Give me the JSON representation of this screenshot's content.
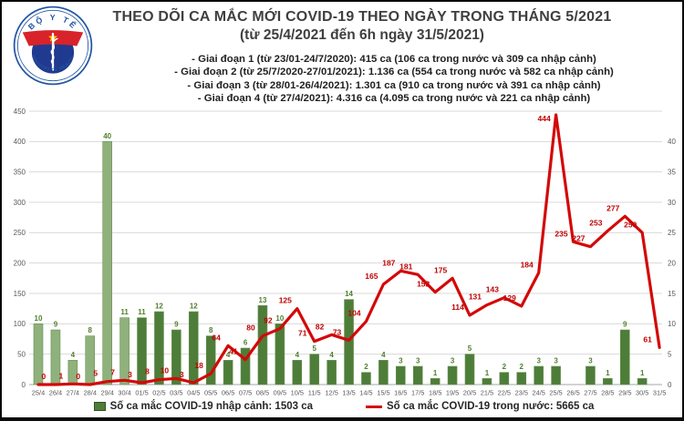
{
  "logo": {
    "top_text": "BỘ Y TẾ",
    "bottom_text": "MINISTRY OF HEALTH"
  },
  "title": {
    "line1": "THEO DÕI CA MẮC MỚI COVID-19 THEO NGÀY TRONG THÁNG 5/2021",
    "line2": "(từ 25/4/2021 đến 6h ngày 31/5/2021)"
  },
  "notes": [
    "- Giai đoạn 1 (từ 23/01-24/7/2020): 415 ca (106 ca trong nước và 309 ca nhập cảnh)",
    "- Giai đoạn 2 (từ 25/7/2020-27/01/2021): 1.136 ca (554 ca trong nước và 582 ca nhập cảnh)",
    "- Giai đoạn 3 (từ 28/01-26/4/2021): 1.301 ca (910 ca trong nước và 391 ca nhập cảnh)",
    "- Giai đoạn 4 (từ 27/4/2021): 4.316 ca (4.095 ca trong nước và 221 ca nhập cảnh)"
  ],
  "chart_data": {
    "type": "combo",
    "title": "THEO DÕI CA MẮC MỚI COVID-19 THEO NGÀY TRONG THÁNG 5/2021 (từ 25/4/2021 đến 6h ngày 31/5/2021)",
    "grid": true,
    "categories": [
      "25/4",
      "26/4",
      "27/4",
      "28/4",
      "29/4",
      "30/4",
      "01/5",
      "02/5",
      "03/5",
      "04/5",
      "05/5",
      "06/5",
      "07/5",
      "08/5",
      "09/5",
      "10/5",
      "11/5",
      "12/5",
      "13/5",
      "14/5",
      "15/5",
      "16/5",
      "17/5",
      "18/5",
      "19/5",
      "20/5",
      "21/5",
      "22/5",
      "23/5",
      "24/5",
      "25/5",
      "26/5",
      "27/5",
      "28/5",
      "29/5",
      "30/5",
      "31/5"
    ],
    "series": [
      {
        "name": "Số ca mắc COVID-19 nhập cảnh",
        "type": "bar",
        "axis": "right",
        "values": [
          10,
          9,
          4,
          8,
          40,
          11,
          11,
          12,
          9,
          12,
          8,
          4,
          6,
          13,
          10,
          4,
          5,
          4,
          14,
          2,
          4,
          3,
          3,
          1,
          3,
          5,
          1,
          2,
          2,
          3,
          3,
          0,
          3,
          1,
          9,
          1,
          0
        ]
      },
      {
        "name": "Số ca mắc COVID-19 trong nước",
        "type": "line",
        "axis": "left",
        "values": [
          0,
          0,
          1,
          0,
          5,
          7,
          3,
          8,
          10,
          3,
          18,
          64,
          41,
          80,
          92,
          125,
          71,
          82,
          73,
          104,
          165,
          187,
          181,
          152,
          175,
          114,
          131,
          143,
          129,
          184,
          444,
          235,
          227,
          253,
          277,
          250,
          61
        ]
      }
    ],
    "line_label_hidden_indices": [
      0
    ],
    "april_light_bar_count": 6,
    "left_axis": {
      "min": 0,
      "max": 450,
      "step": 50,
      "ticks": [
        450,
        400,
        350,
        300,
        250,
        200,
        150,
        100,
        50,
        0
      ]
    },
    "right_axis": {
      "min": 0,
      "max": 40,
      "step": 5,
      "scale_max": 45,
      "ticks": [
        40,
        35,
        30,
        25,
        20,
        15,
        10,
        5,
        0
      ]
    }
  },
  "legend": [
    {
      "label": "Số ca mắc COVID-19 nhập cảnh: 1503 ca",
      "color": "#4e7d39",
      "type": "square"
    },
    {
      "label": "Số ca mắc COVID-19 trong nước: 5665 ca",
      "color": "#d40808",
      "type": "line"
    }
  ],
  "colors": {
    "bar_april": "#8fb17c",
    "bar_may": "#4e7d39",
    "bar_border": "#679150",
    "bar_label": "#507f2d",
    "line": "#d40808",
    "line_label": "#c00000",
    "axis_text": "#595959",
    "gridline": "#d9d9d9",
    "axis_line": "#a6a6a6",
    "logo_blue": "#2155a3",
    "logo_disc": "#203a8f",
    "logo_red": "#d8232a",
    "logo_star": "#ffd100"
  }
}
